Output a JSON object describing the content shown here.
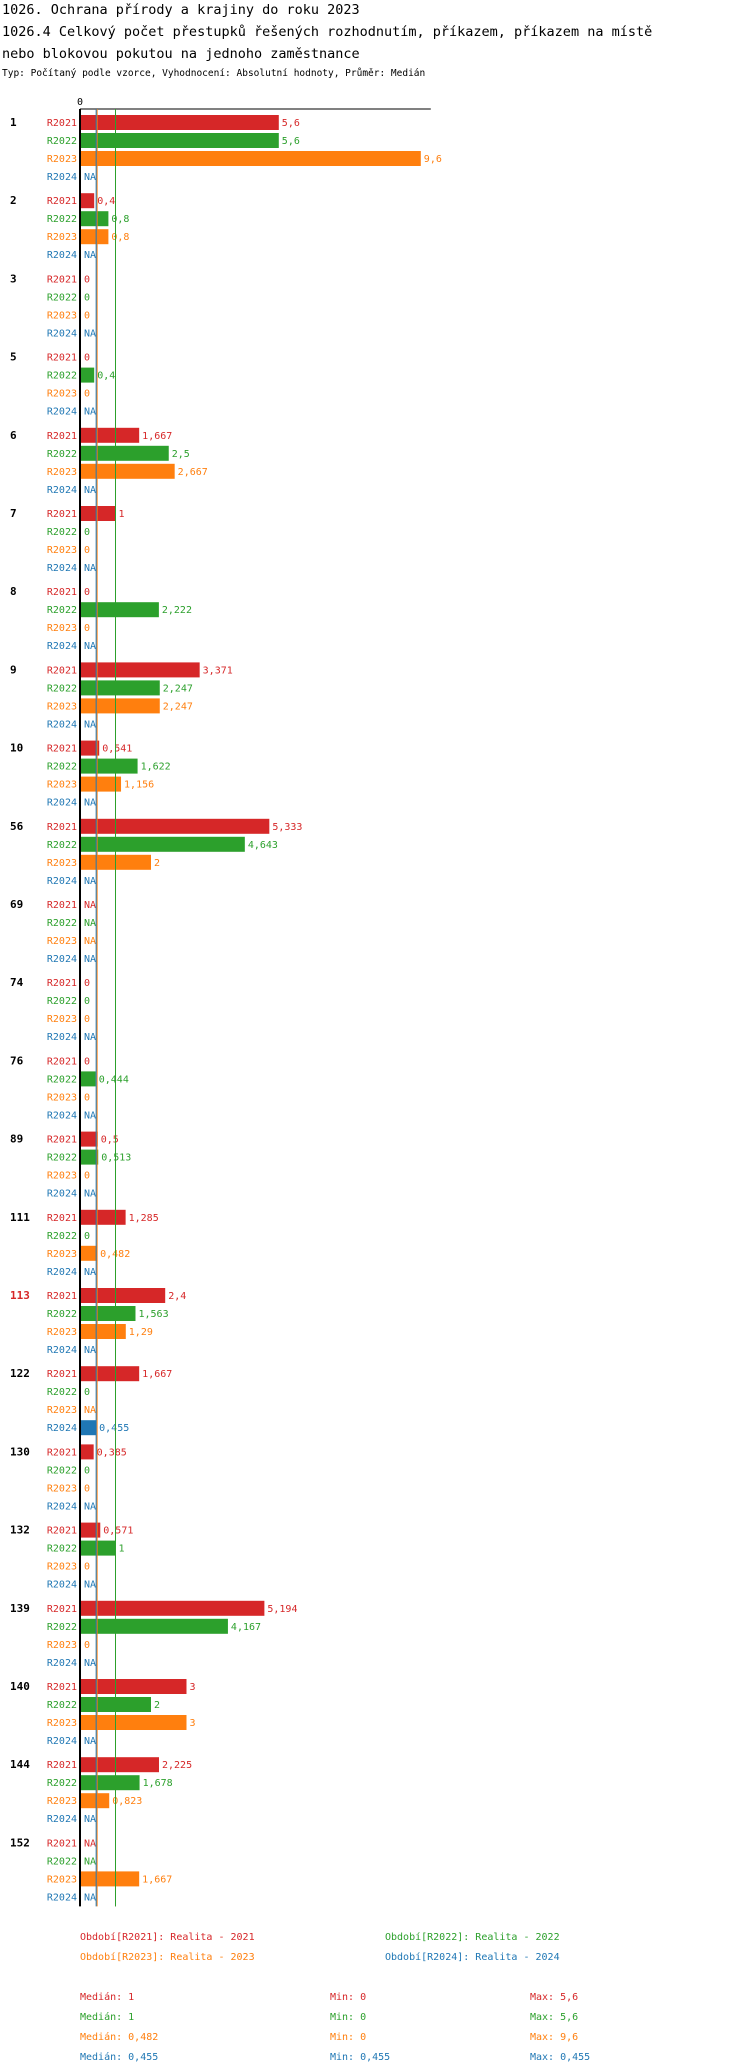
{
  "header": {
    "title_line1": "1026. Ochrana přírody a krajiny do roku 2023",
    "title_line2": "1026.4 Celkový počet přestupků řešených rozhodnutím, příkazem, příkazem na místě",
    "title_line3": "nebo blokovou pokutou na jednoho zaměstnance",
    "subtitle": "Typ: Počítaný podle vzorce, Vyhodnocení: Absolutní hodnoty, Průměr: Medián"
  },
  "chart_data": {
    "type": "bar",
    "orientation": "horizontal",
    "axis_zero_label": "0",
    "xlim": [
      0,
      9.6
    ],
    "series": [
      {
        "key": "R2021",
        "color": "#d62728",
        "legend": "Období[R2021]: Realita - 2021"
      },
      {
        "key": "R2022",
        "color": "#2ca02c",
        "legend": "Období[R2022]: Realita - 2022"
      },
      {
        "key": "R2023",
        "color": "#ff7f0e",
        "legend": "Období[R2023]: Realita - 2023"
      },
      {
        "key": "R2024",
        "color": "#1f77b4",
        "legend": "Období[R2024]: Realita - 2024"
      }
    ],
    "groups": [
      {
        "id": "1",
        "highlight": false,
        "values": [
          5.6,
          5.6,
          9.6,
          null
        ],
        "labels": [
          "5,6",
          "5,6",
          "9,6",
          "NA"
        ]
      },
      {
        "id": "2",
        "highlight": false,
        "values": [
          0.4,
          0.8,
          0.8,
          null
        ],
        "labels": [
          "0,4",
          "0,8",
          "0,8",
          "NA"
        ]
      },
      {
        "id": "3",
        "highlight": false,
        "values": [
          0,
          0,
          0,
          null
        ],
        "labels": [
          "0",
          "0",
          "0",
          "NA"
        ]
      },
      {
        "id": "5",
        "highlight": false,
        "values": [
          0,
          0.4,
          0,
          null
        ],
        "labels": [
          "0",
          "0,4",
          "0",
          "NA"
        ]
      },
      {
        "id": "6",
        "highlight": false,
        "values": [
          1.667,
          2.5,
          2.667,
          null
        ],
        "labels": [
          "1,667",
          "2,5",
          "2,667",
          "NA"
        ]
      },
      {
        "id": "7",
        "highlight": false,
        "values": [
          1,
          0,
          0,
          null
        ],
        "labels": [
          "1",
          "0",
          "0",
          "NA"
        ]
      },
      {
        "id": "8",
        "highlight": false,
        "values": [
          0,
          2.222,
          0,
          null
        ],
        "labels": [
          "0",
          "2,222",
          "0",
          "NA"
        ]
      },
      {
        "id": "9",
        "highlight": false,
        "values": [
          3.371,
          2.247,
          2.247,
          null
        ],
        "labels": [
          "3,371",
          "2,247",
          "2,247",
          "NA"
        ]
      },
      {
        "id": "10",
        "highlight": false,
        "values": [
          0.541,
          1.622,
          1.156,
          null
        ],
        "labels": [
          "0,541",
          "1,622",
          "1,156",
          "NA"
        ]
      },
      {
        "id": "56",
        "highlight": false,
        "values": [
          5.333,
          4.643,
          2,
          null
        ],
        "labels": [
          "5,333",
          "4,643",
          "2",
          "NA"
        ]
      },
      {
        "id": "69",
        "highlight": false,
        "values": [
          null,
          null,
          null,
          null
        ],
        "labels": [
          "NA",
          "NA",
          "NA",
          "NA"
        ]
      },
      {
        "id": "74",
        "highlight": false,
        "values": [
          0,
          0,
          0,
          null
        ],
        "labels": [
          "0",
          "0",
          "0",
          "NA"
        ]
      },
      {
        "id": "76",
        "highlight": false,
        "values": [
          0,
          0.444,
          0,
          null
        ],
        "labels": [
          "0",
          "0,444",
          "0",
          "NA"
        ]
      },
      {
        "id": "89",
        "highlight": false,
        "values": [
          0.5,
          0.513,
          0,
          null
        ],
        "labels": [
          "0,5",
          "0,513",
          "0",
          "NA"
        ]
      },
      {
        "id": "111",
        "highlight": false,
        "values": [
          1.285,
          0,
          0.482,
          null
        ],
        "labels": [
          "1,285",
          "0",
          "0,482",
          "NA"
        ]
      },
      {
        "id": "113",
        "highlight": true,
        "values": [
          2.4,
          1.563,
          1.29,
          null
        ],
        "labels": [
          "2,4",
          "1,563",
          "1,29",
          "NA"
        ]
      },
      {
        "id": "122",
        "highlight": false,
        "values": [
          1.667,
          0,
          null,
          0.455
        ],
        "labels": [
          "1,667",
          "0",
          "NA",
          "0,455"
        ]
      },
      {
        "id": "130",
        "highlight": false,
        "values": [
          0.385,
          0,
          0,
          null
        ],
        "labels": [
          "0,385",
          "0",
          "0",
          "NA"
        ]
      },
      {
        "id": "132",
        "highlight": false,
        "values": [
          0.571,
          1,
          0,
          null
        ],
        "labels": [
          "0,571",
          "1",
          "0",
          "NA"
        ]
      },
      {
        "id": "139",
        "highlight": false,
        "values": [
          5.194,
          4.167,
          0,
          null
        ],
        "labels": [
          "5,194",
          "4,167",
          "0",
          "NA"
        ]
      },
      {
        "id": "140",
        "highlight": false,
        "values": [
          3,
          2,
          3,
          null
        ],
        "labels": [
          "3",
          "2",
          "3",
          "NA"
        ]
      },
      {
        "id": "144",
        "highlight": false,
        "values": [
          2.225,
          1.678,
          0.823,
          null
        ],
        "labels": [
          "2,225",
          "1,678",
          "0,823",
          "NA"
        ]
      },
      {
        "id": "152",
        "highlight": false,
        "values": [
          null,
          null,
          1.667,
          null
        ],
        "labels": [
          "NA",
          "NA",
          "1,667",
          "NA"
        ]
      }
    ],
    "median_lines": [
      {
        "series": "R2021",
        "value": 1
      },
      {
        "series": "R2022",
        "value": 1
      },
      {
        "series": "R2023",
        "value": 0.482
      },
      {
        "series": "R2024",
        "value": 0.455
      }
    ],
    "stats": [
      {
        "median": "Medián: 1",
        "min": "Min: 0",
        "max": "Max: 5,6"
      },
      {
        "median": "Medián: 1",
        "min": "Min: 0",
        "max": "Max: 5,6"
      },
      {
        "median": "Medián: 0,482",
        "min": "Min: 0",
        "max": "Max: 9,6"
      },
      {
        "median": "Medián: 0,455",
        "min": "Min: 0,455",
        "max": "Max: 0,455"
      }
    ]
  }
}
